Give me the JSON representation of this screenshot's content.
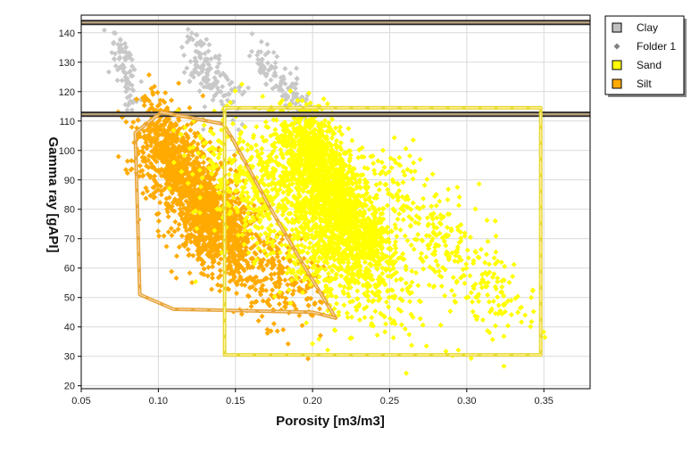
{
  "chart_data": {
    "type": "scatter",
    "xlabel": "Porosity [m3/m3]",
    "ylabel": "Gamma ray [gAPI]",
    "xlim": [
      0.05,
      0.38
    ],
    "ylim": [
      19,
      146
    ],
    "x_ticks": [
      0.05,
      0.1,
      0.15,
      0.2,
      0.25,
      0.3,
      0.35
    ],
    "x_tick_labels": [
      "0.05",
      "0.10",
      "0.15",
      "0.20",
      "0.25",
      "0.30",
      "0.35"
    ],
    "y_ticks": [
      20,
      30,
      40,
      50,
      60,
      70,
      80,
      90,
      100,
      110,
      120,
      130,
      140
    ],
    "y_tick_labels": [
      "20",
      "30",
      "40",
      "50",
      "60",
      "70",
      "80",
      "90",
      "100",
      "110",
      "120",
      "130",
      "140"
    ],
    "grid": true,
    "legend_placement": "outside-top-right",
    "legend": [
      {
        "label": "Clay",
        "marker": "square",
        "color": "#c0c0c0"
      },
      {
        "label": "Folder 1",
        "marker": "diamond",
        "color": "#808080"
      },
      {
        "label": "Sand",
        "marker": "square",
        "color": "#ffff00"
      },
      {
        "label": "Silt",
        "marker": "square",
        "color": "#ffaa00"
      }
    ],
    "horizontal_bands": [
      {
        "name": "clay-upper-cutoff",
        "y": 143.5
      },
      {
        "name": "clay-lower-cutoff",
        "y": 112.3
      }
    ],
    "sand_polygon": {
      "color": "#e8d832",
      "points": [
        [
          0.143,
          114.5
        ],
        [
          0.348,
          114.5
        ],
        [
          0.348,
          30.5
        ],
        [
          0.143,
          30.5
        ]
      ]
    },
    "silt_polygon": {
      "color": "#e8a53a",
      "points": [
        [
          0.085,
          106
        ],
        [
          0.102,
          113
        ],
        [
          0.142,
          109
        ],
        [
          0.148,
          104
        ],
        [
          0.173,
          80
        ],
        [
          0.193,
          62
        ],
        [
          0.215,
          43
        ],
        [
          0.2,
          45
        ],
        [
          0.11,
          46
        ],
        [
          0.088,
          51
        ]
      ]
    },
    "series": [
      {
        "name": "Clay",
        "color": "#c8c8c8",
        "clusters": [
          {
            "x1": 0.073,
            "y1": 139,
            "x2": 0.086,
            "y2": 113,
            "spread_x": 0.003,
            "spread_y": 3,
            "count": 90
          },
          {
            "x1": 0.12,
            "y1": 136,
            "x2": 0.148,
            "y2": 116,
            "spread_x": 0.005,
            "spread_y": 4,
            "count": 140
          },
          {
            "x1": 0.163,
            "y1": 134,
            "x2": 0.195,
            "y2": 112,
            "spread_x": 0.004,
            "spread_y": 3,
            "count": 120
          }
        ]
      },
      {
        "name": "Silt",
        "color": "#ffaa00",
        "clusters": [
          {
            "x1": 0.095,
            "y1": 108,
            "x2": 0.15,
            "y2": 68,
            "spread_x": 0.009,
            "spread_y": 7,
            "count": 1500
          },
          {
            "x1": 0.115,
            "y1": 80,
            "x2": 0.195,
            "y2": 48,
            "spread_x": 0.014,
            "spread_y": 7,
            "count": 500
          }
        ]
      },
      {
        "name": "Sand",
        "color": "#ffff00",
        "clusters": [
          {
            "x1": 0.19,
            "y1": 108,
            "x2": 0.235,
            "y2": 65,
            "spread_x": 0.01,
            "spread_y": 6,
            "count": 1700
          },
          {
            "x1": 0.15,
            "y1": 100,
            "x2": 0.25,
            "y2": 48,
            "spread_x": 0.022,
            "spread_y": 9,
            "count": 1100
          },
          {
            "x1": 0.245,
            "y1": 95,
            "x2": 0.33,
            "y2": 42,
            "spread_x": 0.012,
            "spread_y": 6,
            "count": 320
          }
        ]
      }
    ]
  }
}
